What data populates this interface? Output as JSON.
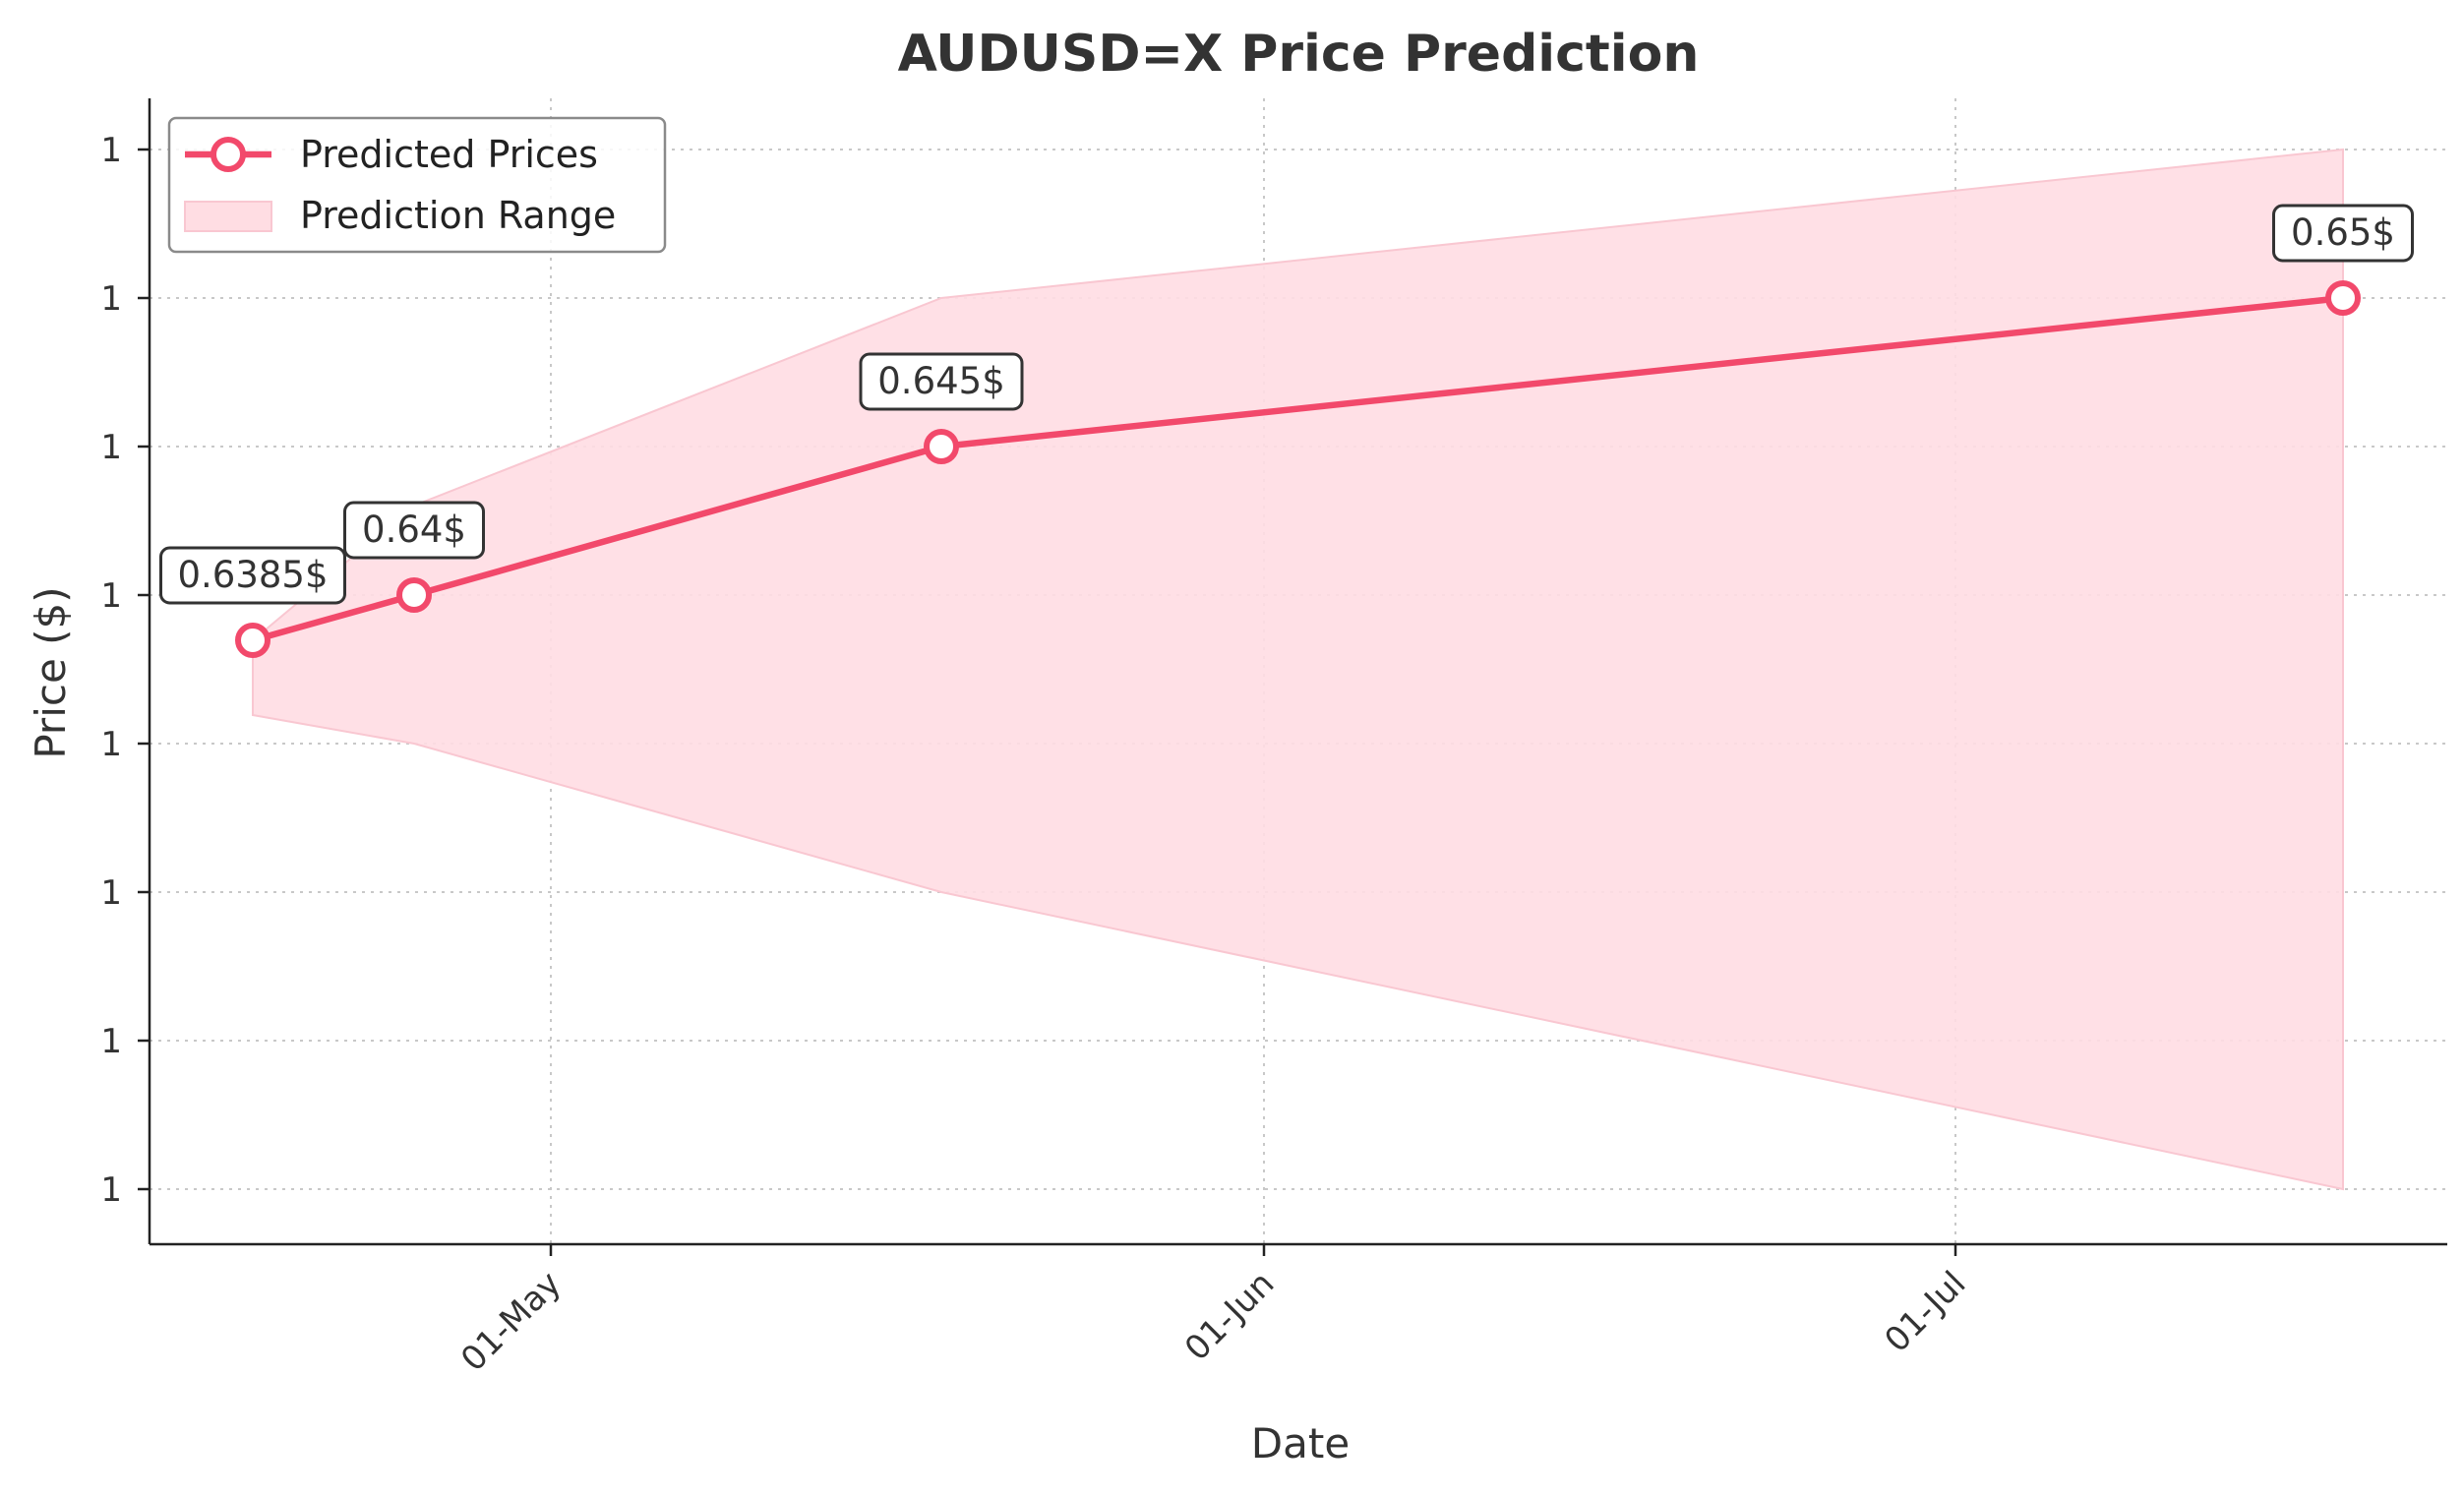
{
  "chart_data": {
    "type": "line",
    "title": "AUDUSD=X Price Prediction",
    "xlabel": "Date",
    "ylabel": "Price ($)",
    "x_ticks": [
      "01-May",
      "01-Jun",
      "01-Jul"
    ],
    "y_tick_labels": [
      "1",
      "1",
      "1",
      "1",
      "1",
      "1",
      "1",
      "1"
    ],
    "ylim": [
      0.6313,
      0.6575
    ],
    "grid": true,
    "legend_position": "top-left",
    "series": [
      {
        "name": "Predicted Prices",
        "color": "#f2496b",
        "points": [
          {
            "date": "2024-04-17",
            "value": 0.6385
          },
          {
            "date": "2024-04-24",
            "value": 0.64
          },
          {
            "date": "2024-05-17",
            "value": 0.645
          },
          {
            "date": "2024-07-18",
            "value": 0.65
          }
        ]
      }
    ],
    "range": {
      "name": "Prediction Range",
      "color": "#ffdde3",
      "points": [
        {
          "date": "2024-04-17",
          "lower": 0.636,
          "upper": 0.6385
        },
        {
          "date": "2024-04-24",
          "lower": 0.6355,
          "upper": 0.6425
        },
        {
          "date": "2024-05-17",
          "lower": 0.6305,
          "upper": 0.65
        },
        {
          "date": "2024-07-18",
          "lower": 0.615,
          "upper": 0.655
        }
      ]
    },
    "annotations": [
      "0.6385$",
      "0.64$",
      "0.645$",
      "0.65$"
    ]
  }
}
